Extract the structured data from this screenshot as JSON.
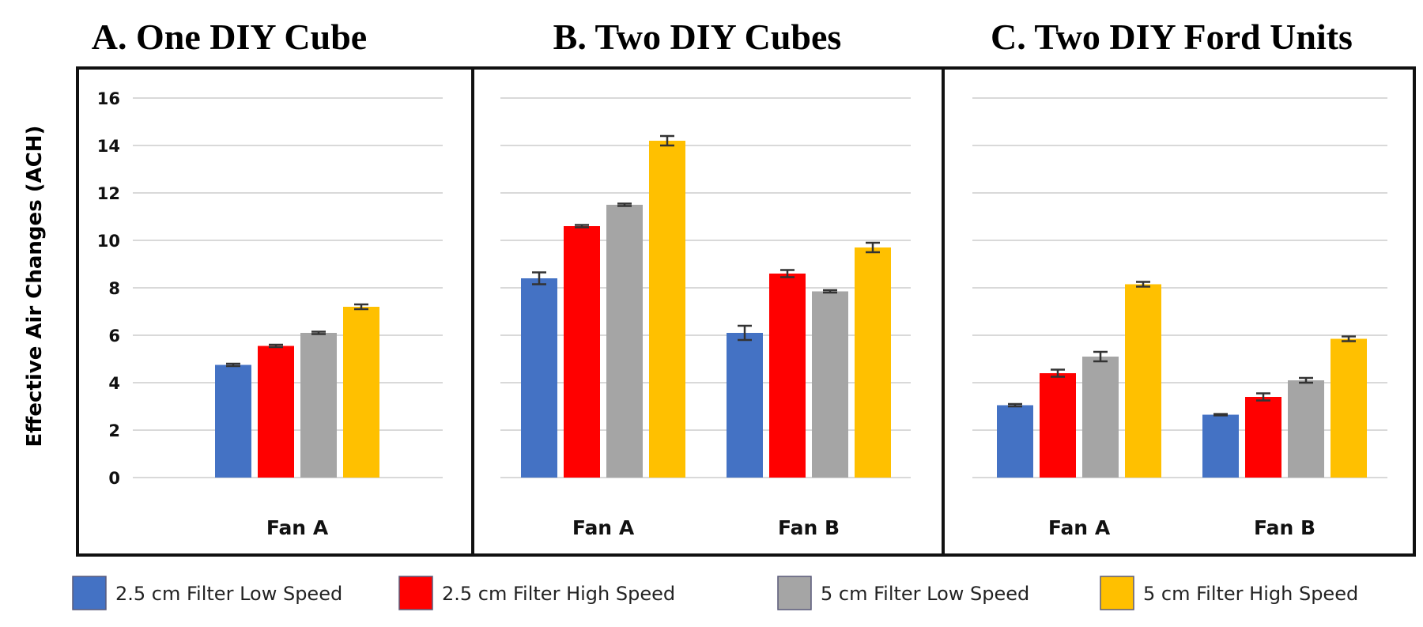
{
  "chart_data": {
    "type": "bar",
    "ylabel": "Effective Air Changes (ACH)",
    "ylim": [
      0,
      16
    ],
    "yticks": [
      0,
      2,
      4,
      6,
      8,
      10,
      12,
      14,
      16
    ],
    "grid": true,
    "legend_position": "bottom",
    "series_names": [
      "2.5 cm Filter Low Speed",
      "2.5 cm Filter High Speed",
      "5 cm Filter Low Speed",
      "5 cm Filter High Speed"
    ],
    "series_colors": [
      "#4472c4",
      "#ff0000",
      "#a5a5a5",
      "#ffc000"
    ],
    "panels": [
      {
        "title": "A. One DIY Cube",
        "categories": [
          "Fan A"
        ],
        "series": [
          {
            "name": "2.5 cm Filter Low Speed",
            "values": [
              4.75
            ],
            "errors": [
              0.05
            ]
          },
          {
            "name": "2.5 cm Filter High Speed",
            "values": [
              5.55
            ],
            "errors": [
              0.05
            ]
          },
          {
            "name": "5 cm Filter Low Speed",
            "values": [
              6.1
            ],
            "errors": [
              0.05
            ]
          },
          {
            "name": "5 cm Filter High Speed",
            "values": [
              7.2
            ],
            "errors": [
              0.1
            ]
          }
        ]
      },
      {
        "title": "B. Two DIY Cubes",
        "categories": [
          "Fan A",
          "Fan B"
        ],
        "series": [
          {
            "name": "2.5 cm Filter Low Speed",
            "values": [
              8.4,
              6.1
            ],
            "errors": [
              0.25,
              0.3
            ]
          },
          {
            "name": "2.5 cm Filter High Speed",
            "values": [
              10.6,
              8.6
            ],
            "errors": [
              0.05,
              0.15
            ]
          },
          {
            "name": "5 cm Filter Low Speed",
            "values": [
              11.5,
              7.85
            ],
            "errors": [
              0.05,
              0.05
            ]
          },
          {
            "name": "5 cm Filter High Speed",
            "values": [
              14.2,
              9.7
            ],
            "errors": [
              0.2,
              0.2
            ]
          }
        ]
      },
      {
        "title": "C. Two DIY Ford Units",
        "categories": [
          "Fan A",
          "Fan B"
        ],
        "series": [
          {
            "name": "2.5 cm Filter Low Speed",
            "values": [
              3.05,
              2.65
            ],
            "errors": [
              0.05,
              0.03
            ]
          },
          {
            "name": "2.5 cm Filter High Speed",
            "values": [
              4.4,
              3.4
            ],
            "errors": [
              0.15,
              0.15
            ]
          },
          {
            "name": "5 cm Filter Low Speed",
            "values": [
              5.1,
              4.1
            ],
            "errors": [
              0.2,
              0.1
            ]
          },
          {
            "name": "5 cm Filter High Speed",
            "values": [
              8.15,
              5.85
            ],
            "errors": [
              0.1,
              0.1
            ]
          }
        ]
      }
    ]
  }
}
